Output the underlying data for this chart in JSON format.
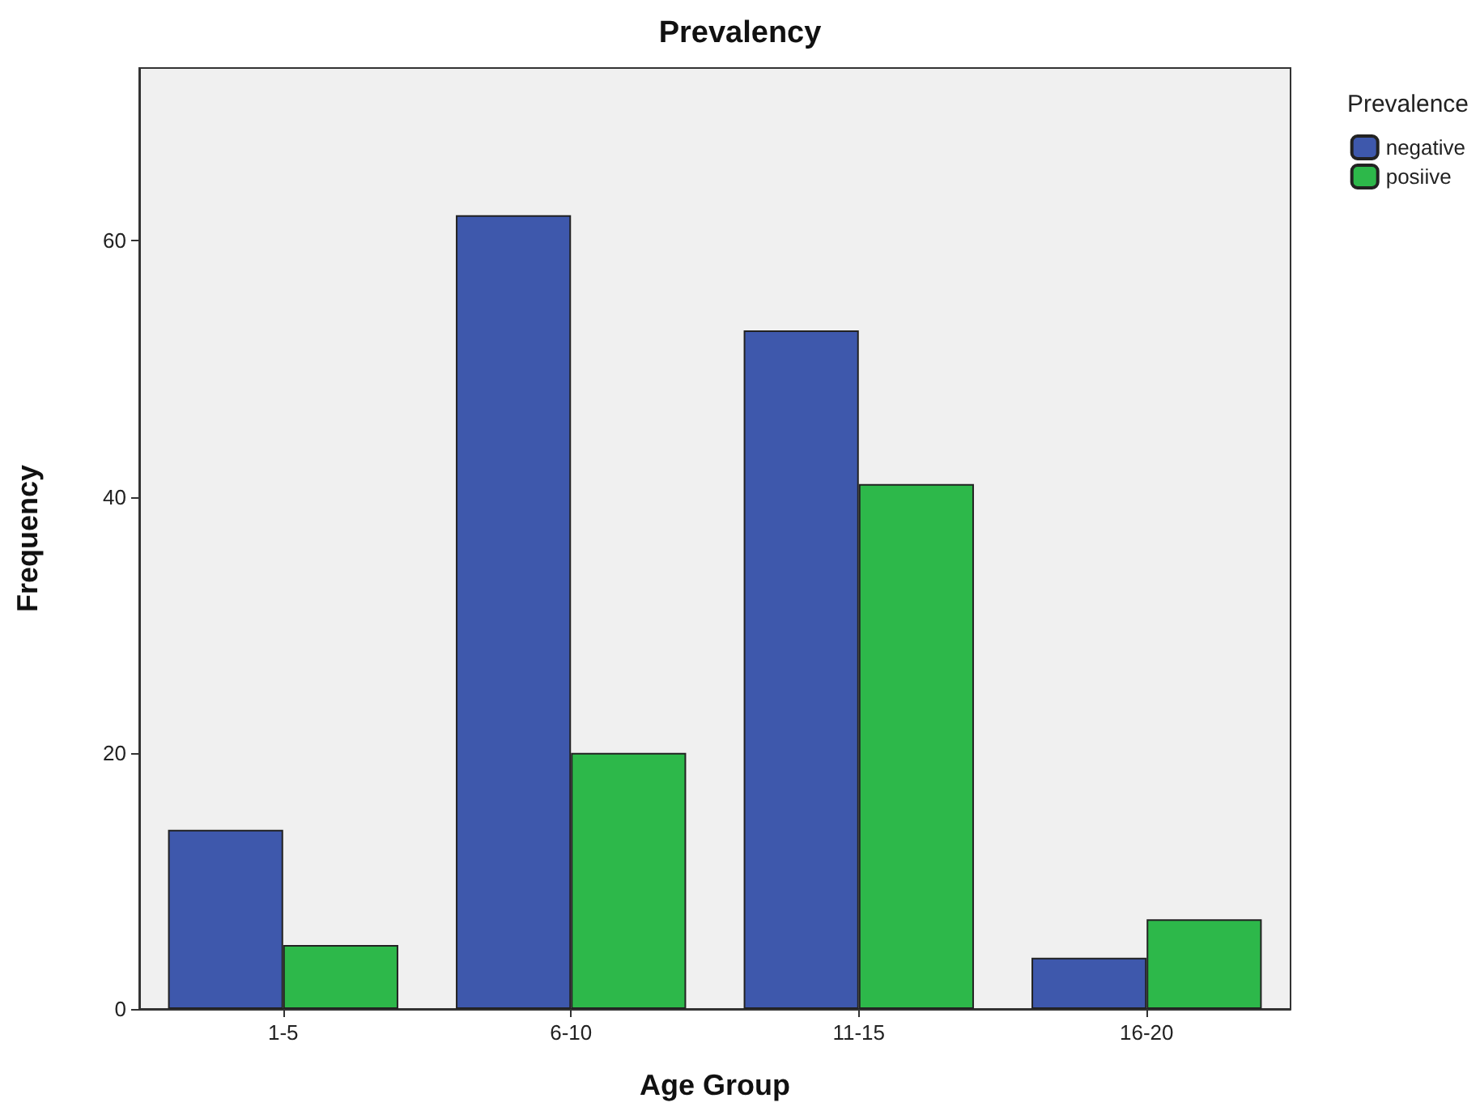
{
  "chart_data": {
    "type": "bar",
    "title": "Prevalency",
    "xlabel": "Age Group",
    "ylabel": "Frequency",
    "legend_title": "Prevalence",
    "legend": "top right",
    "categories": [
      "1-5",
      "6-10",
      "11-15",
      "16-20"
    ],
    "series": [
      {
        "name": "negative",
        "color": "#3e58ac",
        "values": [
          14,
          62,
          53,
          4
        ]
      },
      {
        "name": "posiive",
        "color": "#2db84a",
        "values": [
          5,
          20,
          41,
          7
        ]
      }
    ],
    "ylim": [
      0,
      73.5
    ],
    "yticks": [
      0,
      20,
      40,
      60
    ]
  }
}
